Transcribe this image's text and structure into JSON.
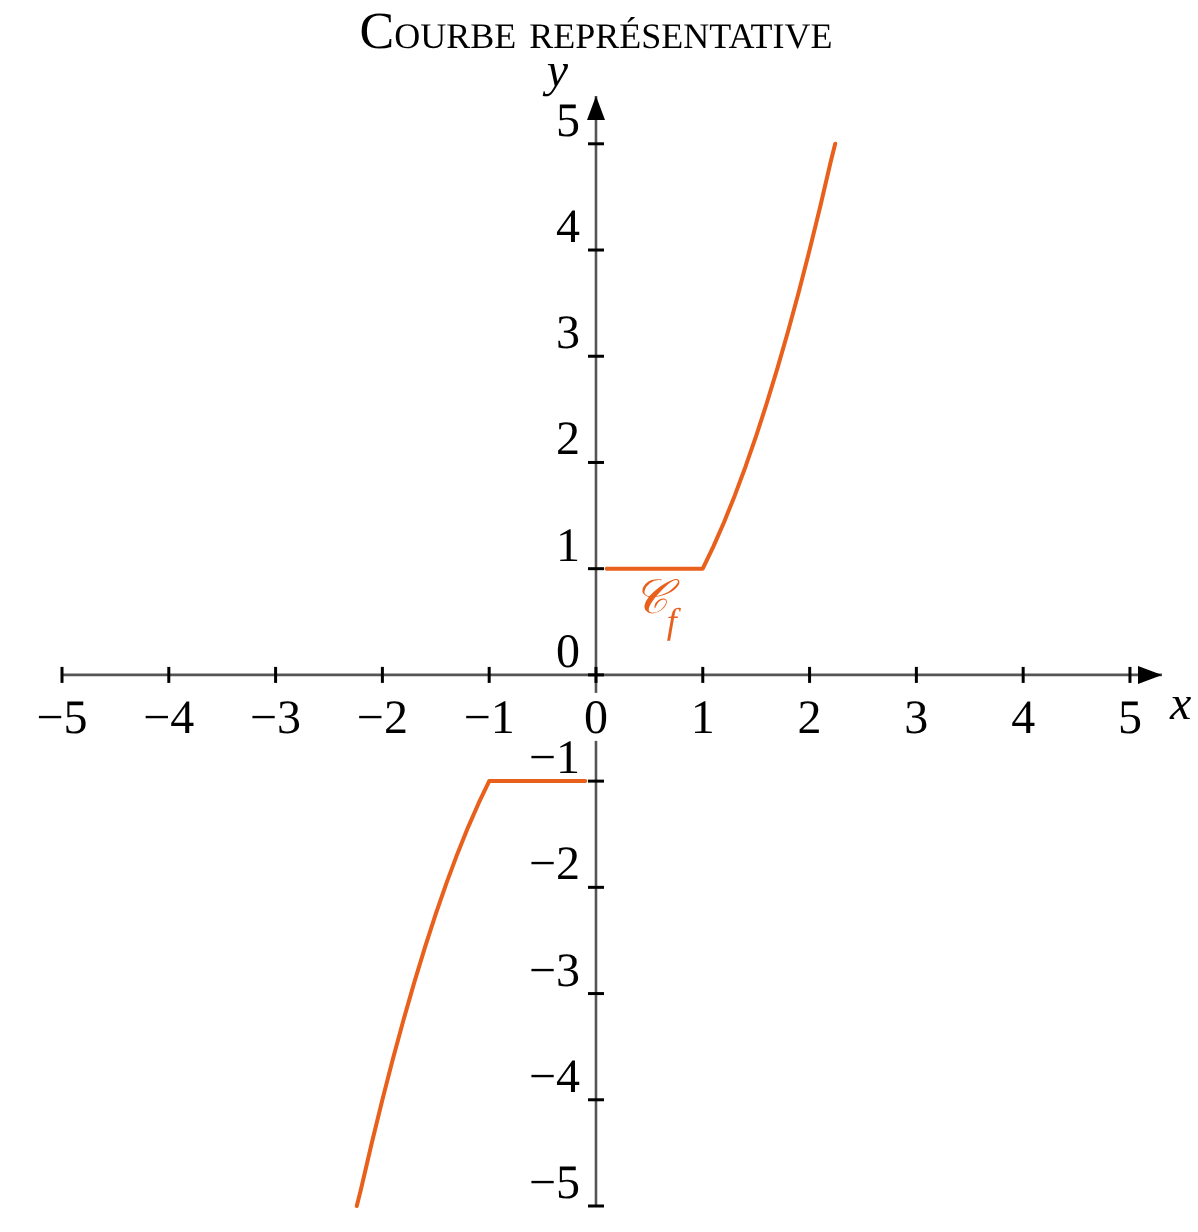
{
  "chart_data": {
    "type": "line",
    "title": "Courbe représentative",
    "xlabel": "x",
    "ylabel": "y",
    "xlim": [
      -5,
      5.3
    ],
    "ylim": [
      -5,
      5.45
    ],
    "xticks": [
      -5,
      -4,
      -3,
      -2,
      -1,
      0,
      1,
      2,
      3,
      4,
      5
    ],
    "yticks": [
      -5,
      -4,
      -3,
      -2,
      -1,
      0,
      1,
      2,
      3,
      4,
      5
    ],
    "series": [
      {
        "name": "𝒞$_{f}$",
        "color": "#e8601c",
        "x": [
          -2.24,
          -2.2,
          -2.1,
          -2,
          -1.9,
          -1.8,
          -1.7,
          -1.6,
          -1.5,
          -1.4,
          -1.3,
          -1.2,
          -1.1,
          -1,
          -0.1,
          0,
          0.1,
          1,
          1.1,
          1.2,
          1.3,
          1.4,
          1.5,
          1.6,
          1.7,
          1.8,
          1.9,
          2,
          2.1,
          2.2,
          2.24
        ],
        "values": [
          -5,
          -4.84,
          -4.41,
          -4,
          -3.61,
          -3.24,
          -2.89,
          -2.56,
          -2.25,
          -1.96,
          -1.69,
          -1.44,
          -1.21,
          -1,
          -1,
          null,
          1,
          1,
          1.21,
          1.44,
          1.69,
          1.96,
          2.25,
          2.56,
          2.89,
          3.24,
          3.61,
          4,
          4.41,
          4.84,
          5
        ]
      }
    ]
  }
}
